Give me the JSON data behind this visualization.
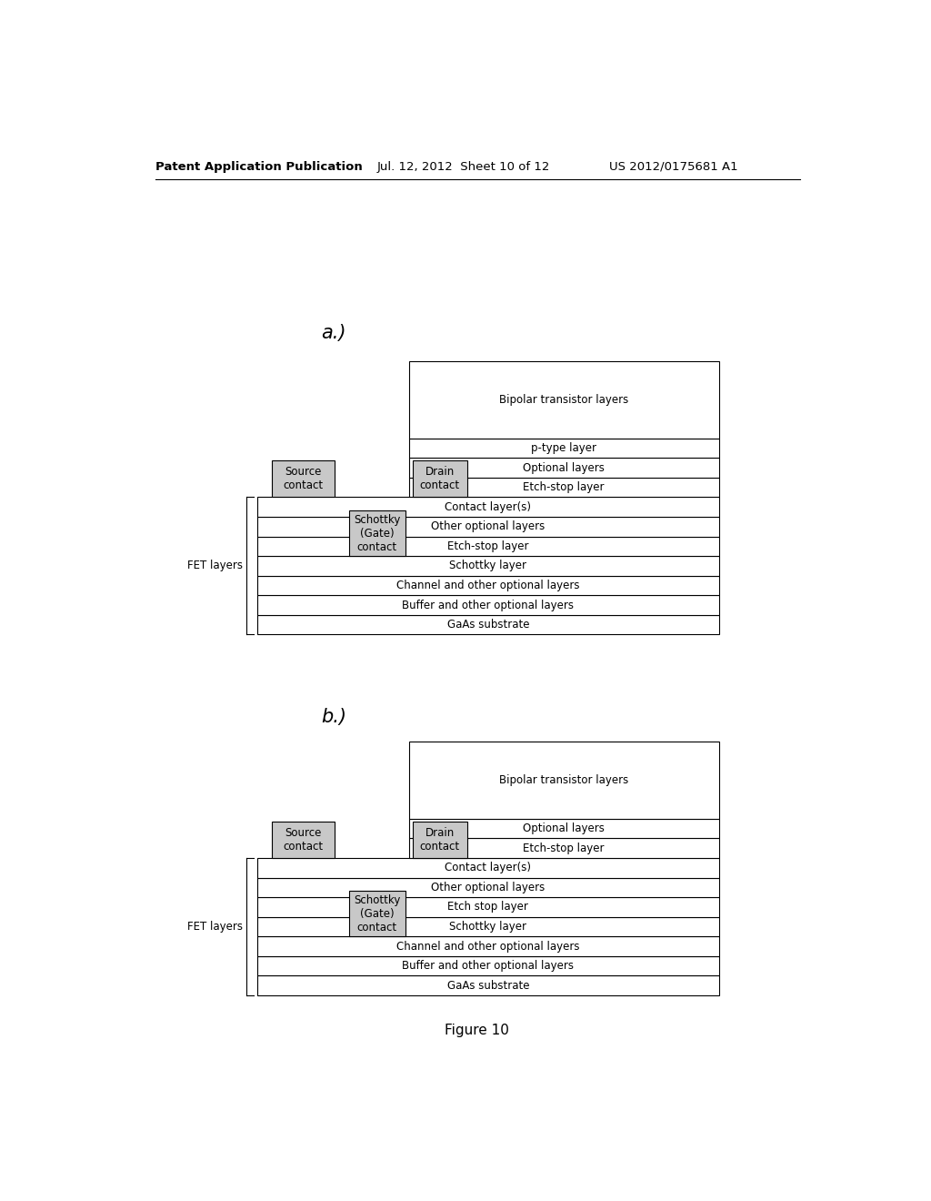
{
  "header_left": "Patent Application Publication",
  "header_mid": "Jul. 12, 2012  Sheet 10 of 12",
  "header_right": "US 2012/0175681 A1",
  "figure_caption": "Figure 10",
  "bg_color": "#ffffff",
  "contact_fill": "#c8c8c8",
  "layer_fill": "#ffffff",
  "text_color": "#000000",
  "font_size": 8.5,
  "header_font_size": 9.5,
  "diagram_a": {
    "label": "a.)",
    "fet_label": "FET layers",
    "source_contact": "Source\ncontact",
    "drain_contact": "Drain\ncontact",
    "schottky_contact": "Schottky\n(Gate)\ncontact",
    "full_layers": [
      "GaAs substrate",
      "Buffer and other optional layers",
      "Channel and other optional layers",
      "Schottky layer"
    ],
    "left_only_layers": [
      "Etch-stop layer",
      "Other optional layers",
      "Contact layer(s)"
    ],
    "right_only_layers": [
      "Etch-stop layer",
      "Optional layers",
      "p-type layer"
    ],
    "bipolar_layer": "Bipolar transistor layers"
  },
  "diagram_b": {
    "label": "b.)",
    "fet_label": "FET layers",
    "source_contact": "Source\ncontact",
    "drain_contact": "Drain\ncontact",
    "schottky_contact": "Schottky\n(Gate)\ncontact",
    "full_layers": [
      "GaAs substrate",
      "Buffer and other optional layers",
      "Channel and other optional layers"
    ],
    "left_only_layers": [
      "Schottky layer",
      "Etch stop layer",
      "Other optional layers",
      "Contact layer(s)"
    ],
    "right_only_layers": [
      "Etch-stop layer",
      "Optional layers"
    ],
    "bipolar_layer": "Bipolar transistor layers"
  }
}
